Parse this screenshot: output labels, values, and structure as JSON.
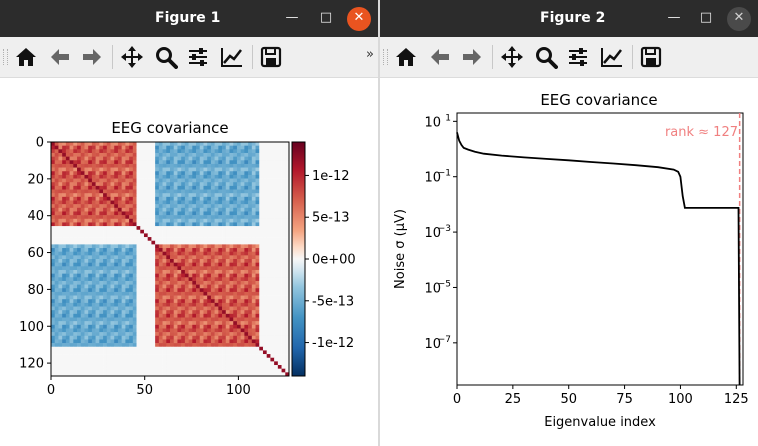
{
  "windows": [
    {
      "title": "Figure 1",
      "toolbar": [
        "home-icon",
        "back-icon",
        "forward-icon",
        "pan-icon",
        "zoom-icon",
        "configure-subplots-icon",
        "edit-axis-icon",
        "save-icon"
      ],
      "overflow": "»"
    },
    {
      "title": "Figure 2",
      "toolbar": [
        "home-icon",
        "back-icon",
        "forward-icon",
        "pan-icon",
        "zoom-icon",
        "configure-subplots-icon",
        "edit-axis-icon",
        "save-icon"
      ]
    }
  ],
  "window_controls": {
    "minimize": "—",
    "maximize": "□",
    "close": "✕"
  },
  "chart_data": [
    {
      "type": "heatmap",
      "title": "EEG covariance",
      "x_ticks": [
        "0",
        "50",
        "100"
      ],
      "y_ticks": [
        "0",
        "20",
        "40",
        "60",
        "80",
        "100",
        "120"
      ],
      "xlim": [
        0,
        127
      ],
      "ylim": [
        127,
        0
      ],
      "colorbar": {
        "colormap": "RdBu_r",
        "range": [
          -1.4e-12,
          1.4e-12
        ],
        "ticks": [
          "1e-12",
          "5e-13",
          "0e+00",
          "-5e-13",
          "-1e-12"
        ]
      },
      "blocks": [
        {
          "rows": [
            0,
            45
          ],
          "cols": [
            0,
            45
          ],
          "sign": "positive"
        },
        {
          "rows": [
            55,
            110
          ],
          "cols": [
            55,
            110
          ],
          "sign": "positive"
        },
        {
          "rows": [
            0,
            45
          ],
          "cols": [
            55,
            110
          ],
          "sign": "negative"
        },
        {
          "rows": [
            55,
            110
          ],
          "cols": [
            0,
            45
          ],
          "sign": "negative"
        }
      ]
    },
    {
      "type": "line",
      "title": "EEG covariance",
      "xlabel": "Eigenvalue index",
      "ylabel": "Noise σ (µV)",
      "x_ticks": [
        "0",
        "25",
        "50",
        "75",
        "100",
        "125"
      ],
      "y_ticks": [
        {
          "base": "10",
          "exp": "1"
        },
        {
          "base": "10",
          "exp": "−1"
        },
        {
          "base": "10",
          "exp": "−3"
        },
        {
          "base": "10",
          "exp": "−5"
        },
        {
          "base": "10",
          "exp": "−7"
        }
      ],
      "xlim": [
        0,
        128
      ],
      "ylim": [
        3e-09,
        20
      ],
      "yscale": "log",
      "annotation": "rank ≈ 127",
      "rank_line_x": 126.5,
      "series": [
        {
          "color": "#000000",
          "x": [
            0,
            1,
            2,
            3,
            5,
            8,
            12,
            20,
            30,
            40,
            50,
            60,
            70,
            80,
            90,
            97,
            99,
            100,
            101,
            102,
            110,
            120,
            126,
            126.5
          ],
          "y": [
            4.0,
            2.0,
            1.4,
            1.1,
            0.95,
            0.8,
            0.68,
            0.58,
            0.5,
            0.44,
            0.39,
            0.34,
            0.3,
            0.26,
            0.22,
            0.18,
            0.15,
            0.1,
            0.02,
            0.0075,
            0.0075,
            0.0075,
            0.0075,
            3e-09
          ]
        }
      ]
    }
  ]
}
